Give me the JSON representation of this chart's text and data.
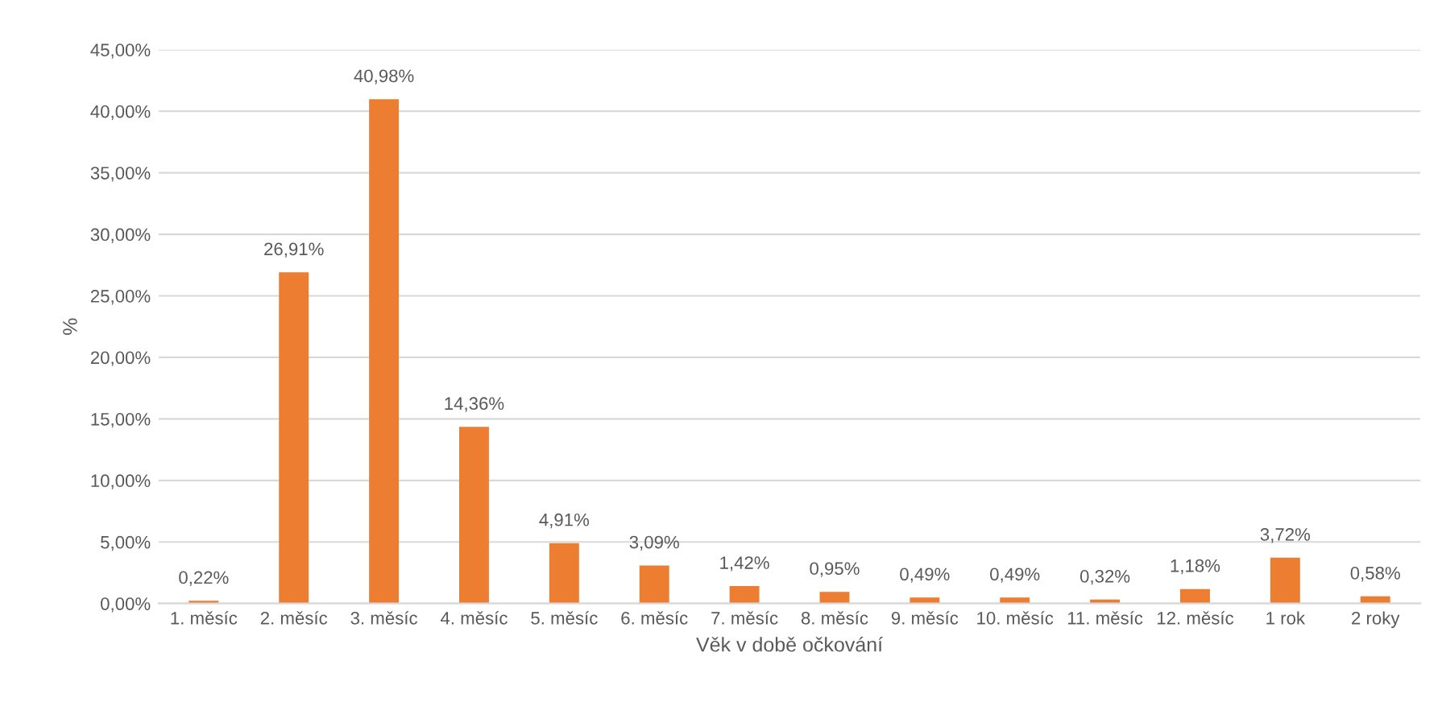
{
  "chart_data": {
    "type": "bar",
    "xlabel": "Věk v době očkování",
    "ylabel": "%",
    "categories": [
      "1. měsíc",
      "2. měsíc",
      "3. měsíc",
      "4. měsíc",
      "5. měsíc",
      "6. měsíc",
      "7. měsíc",
      "8. měsíc",
      "9. měsíc",
      "10. měsíc",
      "11. měsíc",
      "12. měsíc",
      "1 rok",
      "2 roky"
    ],
    "values": [
      0.22,
      26.91,
      40.98,
      14.36,
      4.91,
      3.09,
      1.42,
      0.95,
      0.49,
      0.49,
      0.32,
      1.18,
      3.72,
      0.58
    ],
    "value_labels": [
      "0,22%",
      "26,91%",
      "40,98%",
      "14,36%",
      "4,91%",
      "3,09%",
      "1,42%",
      "0,95%",
      "0,49%",
      "0,49%",
      "0,32%",
      "1,18%",
      "3,72%",
      "0,58%"
    ],
    "color": "#ed7d31",
    "ylim": [
      0,
      45
    ],
    "yticks": [
      {
        "value": 0,
        "label": "0,00%"
      },
      {
        "value": 5,
        "label": "5,00%"
      },
      {
        "value": 10,
        "label": "10,00%"
      },
      {
        "value": 15,
        "label": "15,00%"
      },
      {
        "value": 20,
        "label": "20,00%"
      },
      {
        "value": 25,
        "label": "25,00%"
      },
      {
        "value": 30,
        "label": "30,00%"
      },
      {
        "value": 35,
        "label": "35,00%"
      },
      {
        "value": 40,
        "label": "40,00%"
      },
      {
        "value": 45,
        "label": "45,00%"
      }
    ],
    "grid": "y",
    "legend": false
  }
}
